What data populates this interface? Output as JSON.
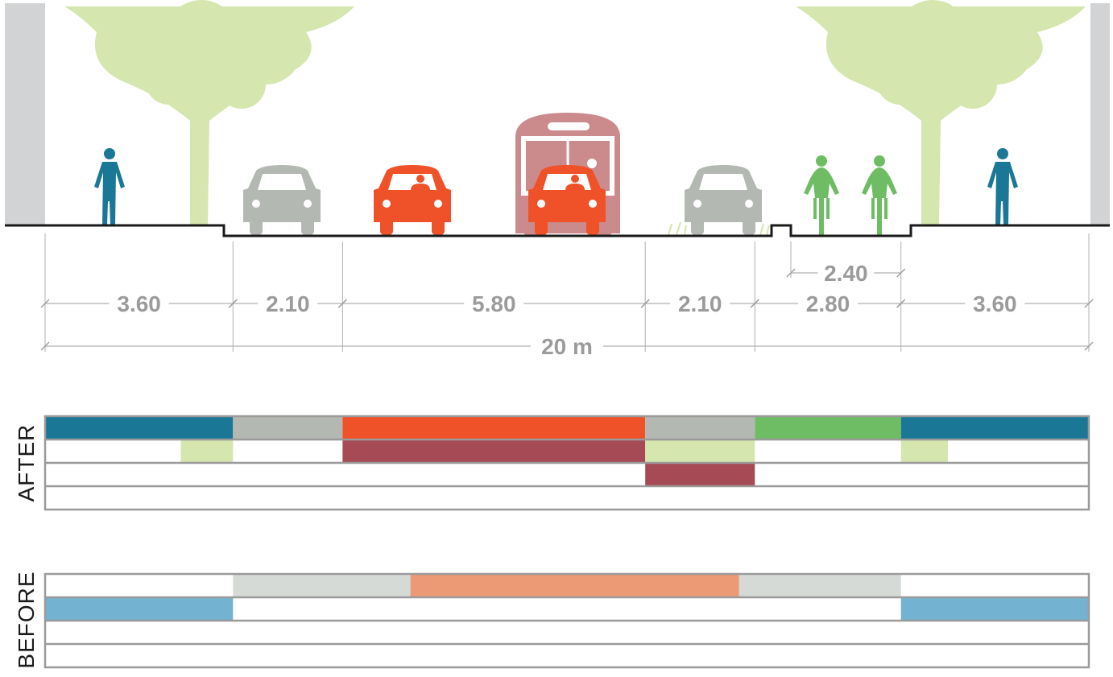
{
  "colors": {
    "pedestrian": "#1b7796",
    "parking": "#b4b8b2",
    "car": "#ef5128",
    "cycle": "#6ebd64",
    "tree": "#d5e6ae",
    "bus": "#a64b55",
    "bus_icon": "#cb8a8c",
    "grid_border": "#9a9a9a",
    "dim_text": "#9b9b9b",
    "before_parking": "#d6dad6",
    "before_car": "#ec9a75",
    "before_pedestrian": "#73b2d0",
    "building": "#d1d3d4"
  },
  "dimensions": {
    "segments": [
      {
        "label": "3.60",
        "value": 3.6
      },
      {
        "label": "2.10",
        "value": 2.1
      },
      {
        "label": "5.80",
        "value": 5.8
      },
      {
        "label": "2.10",
        "value": 2.1
      },
      {
        "label": "2.80",
        "value": 2.8
      },
      {
        "label": "3.60",
        "value": 3.6
      }
    ],
    "cycle_inner": {
      "label": "2.40",
      "value": 2.4
    },
    "total": {
      "label": "20 m",
      "value": 20
    }
  },
  "cross_section": {
    "icons": [
      {
        "name": "pedestrian-icon",
        "kind": "pedestrian",
        "color": "pedestrian"
      },
      {
        "name": "tree-icon",
        "kind": "tree",
        "color": "tree"
      },
      {
        "name": "car-icon",
        "kind": "car",
        "color": "parking"
      },
      {
        "name": "car-icon",
        "kind": "car",
        "color": "car"
      },
      {
        "name": "bus-icon",
        "kind": "bus",
        "color": "bus_icon"
      },
      {
        "name": "car-icon",
        "kind": "car",
        "color": "car"
      },
      {
        "name": "car-icon",
        "kind": "car",
        "color": "parking"
      },
      {
        "name": "cyclist-icon",
        "kind": "cyclist",
        "color": "cycle"
      },
      {
        "name": "cyclist-icon",
        "kind": "cyclist",
        "color": "cycle"
      },
      {
        "name": "tree-icon",
        "kind": "tree",
        "color": "tree"
      },
      {
        "name": "pedestrian-icon",
        "kind": "pedestrian",
        "color": "pedestrian"
      }
    ]
  },
  "after": {
    "label": "AFTER",
    "rows": [
      [
        {
          "from": 0,
          "to": 3.6,
          "color": "pedestrian"
        },
        {
          "from": 3.6,
          "to": 5.7,
          "color": "parking"
        },
        {
          "from": 5.7,
          "to": 11.5,
          "color": "car"
        },
        {
          "from": 11.5,
          "to": 13.6,
          "color": "parking"
        },
        {
          "from": 13.6,
          "to": 16.4,
          "color": "cycle"
        },
        {
          "from": 16.4,
          "to": 20,
          "color": "pedestrian"
        }
      ],
      [
        {
          "from": 2.6,
          "to": 3.6,
          "color": "tree"
        },
        {
          "from": 5.7,
          "to": 11.5,
          "color": "bus"
        },
        {
          "from": 11.5,
          "to": 13.6,
          "color": "tree"
        },
        {
          "from": 16.4,
          "to": 17.3,
          "color": "tree"
        }
      ],
      [
        {
          "from": 11.5,
          "to": 13.6,
          "color": "bus"
        }
      ],
      []
    ]
  },
  "before": {
    "label": "BEFORE",
    "rows": [
      [
        {
          "from": 3.6,
          "to": 7.0,
          "color": "before_parking"
        },
        {
          "from": 7.0,
          "to": 13.3,
          "color": "before_car"
        },
        {
          "from": 13.3,
          "to": 16.4,
          "color": "before_parking"
        }
      ],
      [
        {
          "from": 0,
          "to": 3.6,
          "color": "before_pedestrian"
        },
        {
          "from": 16.4,
          "to": 20,
          "color": "before_pedestrian"
        }
      ],
      [],
      []
    ]
  }
}
